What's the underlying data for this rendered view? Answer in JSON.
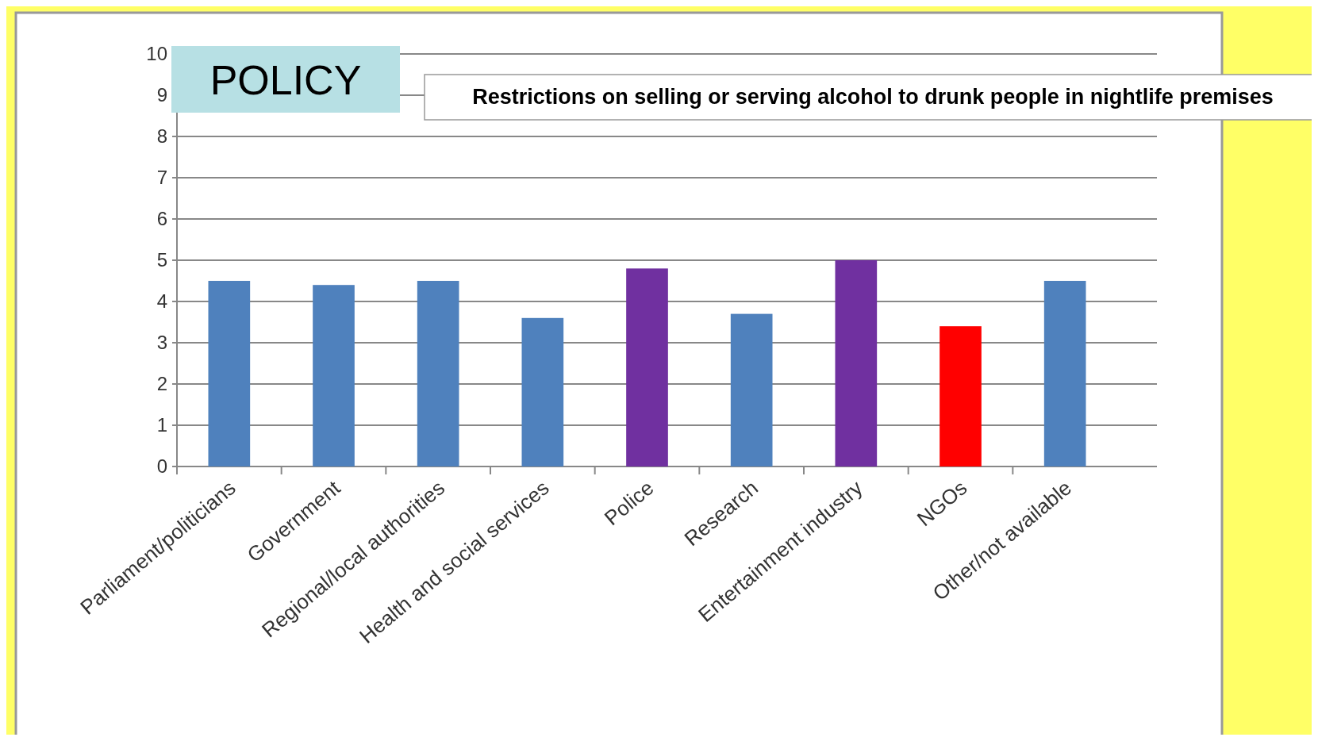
{
  "chart_data": {
    "type": "bar",
    "title": "POLICY",
    "subtitle": "Restrictions on selling or serving alcohol to drunk people in nightlife premises",
    "categories": [
      "Parliament/politicians",
      "Government",
      "Regional/local authorities",
      "Health and social services",
      "Police",
      "Research",
      "Entertainment industry",
      "NGOs",
      "Other/not available"
    ],
    "values": [
      4.5,
      4.4,
      4.5,
      3.6,
      4.8,
      3.7,
      5.0,
      3.4,
      4.5
    ],
    "colors": [
      "#4f81bd",
      "#4f81bd",
      "#4f81bd",
      "#4f81bd",
      "#7030a0",
      "#4f81bd",
      "#7030a0",
      "#ff0000",
      "#4f81bd"
    ],
    "ylim": [
      0,
      10
    ],
    "yticks": [
      0,
      1,
      2,
      3,
      4,
      5,
      6,
      7,
      8,
      9,
      10
    ],
    "grid": "y"
  }
}
